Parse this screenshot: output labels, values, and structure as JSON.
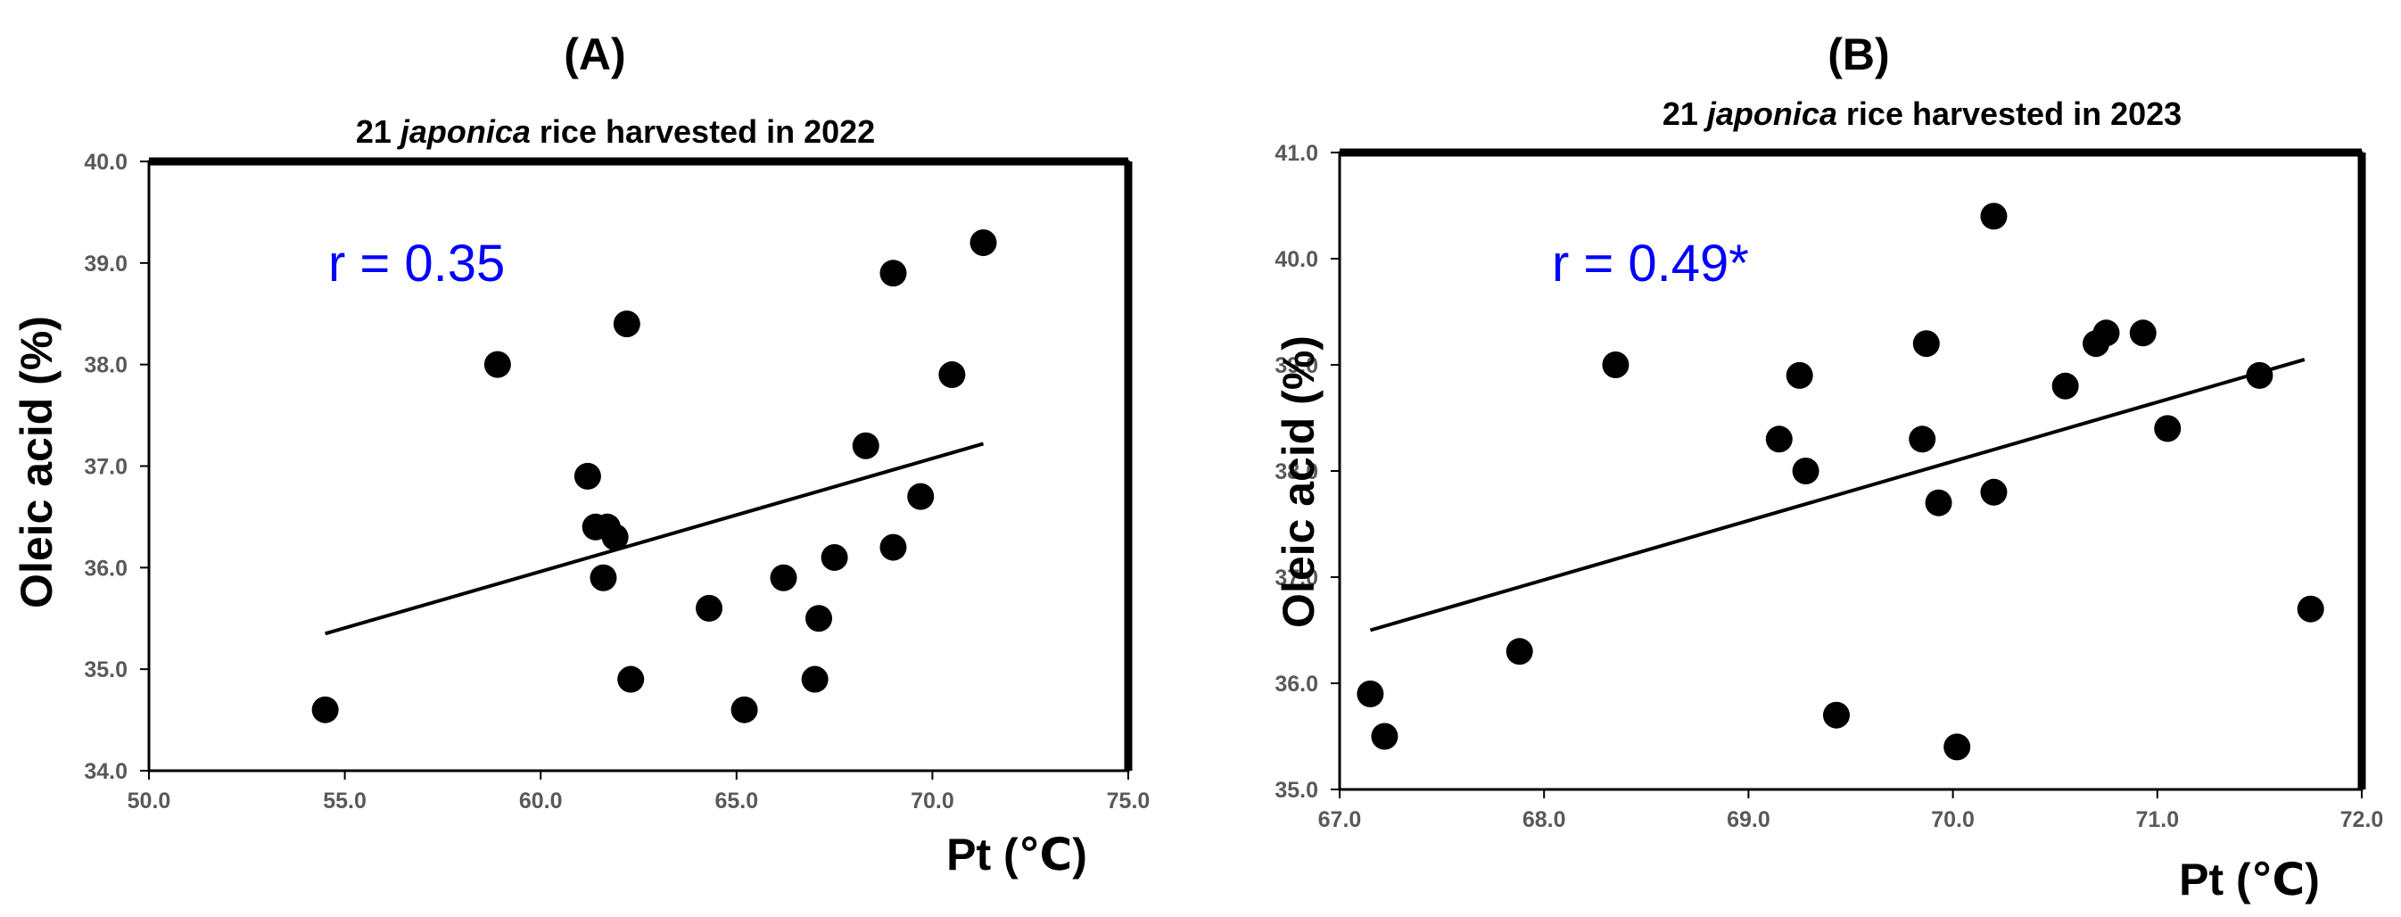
{
  "chart_data": [
    {
      "type": "scatter",
      "panel": "(A)",
      "title_prefix": "21 ",
      "title_italic": "japonica",
      "title_suffix": " rice harvested in 2022",
      "xlabel": "Pt (℃)",
      "ylabel": "Oleic acid (%)",
      "annotation": "r = 0.35",
      "xlim": [
        50.0,
        75.0
      ],
      "ylim": [
        34.0,
        40.0
      ],
      "xticks": [
        "50.0",
        "55.0",
        "60.0",
        "65.0",
        "70.0",
        "75.0"
      ],
      "yticks": [
        "34.0",
        "35.0",
        "36.0",
        "37.0",
        "38.0",
        "39.0",
        "40.0"
      ],
      "grid": false,
      "points": [
        {
          "x": 54.5,
          "y": 34.6
        },
        {
          "x": 58.9,
          "y": 38.0
        },
        {
          "x": 61.2,
          "y": 36.9
        },
        {
          "x": 61.4,
          "y": 36.4
        },
        {
          "x": 61.6,
          "y": 35.9
        },
        {
          "x": 61.7,
          "y": 36.4
        },
        {
          "x": 61.9,
          "y": 36.3
        },
        {
          "x": 62.2,
          "y": 38.4
        },
        {
          "x": 62.3,
          "y": 34.9
        },
        {
          "x": 64.3,
          "y": 35.6
        },
        {
          "x": 65.2,
          "y": 34.6
        },
        {
          "x": 66.2,
          "y": 35.9
        },
        {
          "x": 67.0,
          "y": 34.9
        },
        {
          "x": 67.1,
          "y": 35.5
        },
        {
          "x": 67.5,
          "y": 36.1
        },
        {
          "x": 68.3,
          "y": 37.2
        },
        {
          "x": 69.0,
          "y": 36.2
        },
        {
          "x": 69.0,
          "y": 38.9
        },
        {
          "x": 69.7,
          "y": 36.7
        },
        {
          "x": 70.5,
          "y": 37.9
        },
        {
          "x": 71.3,
          "y": 39.2
        }
      ],
      "trendline": {
        "x": [
          54.5,
          71.3
        ],
        "y": [
          35.35,
          37.22
        ]
      }
    },
    {
      "type": "scatter",
      "panel": "(B)",
      "title_prefix": "21 ",
      "title_italic": "japonica",
      "title_suffix": " rice harvested in 2023",
      "xlabel": "Pt (℃)",
      "ylabel": "Oleic acid (%)",
      "annotation": "r = 0.49*",
      "xlim": [
        67.0,
        72.0
      ],
      "ylim": [
        35.0,
        41.0
      ],
      "xticks": [
        "67.0",
        "68.0",
        "69.0",
        "70.0",
        "71.0",
        "72.0"
      ],
      "yticks": [
        "35.0",
        "36.0",
        "37.0",
        "38.0",
        "39.0",
        "40.0",
        "41.0"
      ],
      "grid": false,
      "points": [
        {
          "x": 67.15,
          "y": 35.9
        },
        {
          "x": 67.22,
          "y": 35.5
        },
        {
          "x": 67.88,
          "y": 36.3
        },
        {
          "x": 68.35,
          "y": 39.0
        },
        {
          "x": 69.15,
          "y": 38.3
        },
        {
          "x": 69.25,
          "y": 38.9
        },
        {
          "x": 69.28,
          "y": 38.0
        },
        {
          "x": 69.43,
          "y": 35.7
        },
        {
          "x": 69.85,
          "y": 38.3
        },
        {
          "x": 69.87,
          "y": 39.2
        },
        {
          "x": 69.93,
          "y": 37.7
        },
        {
          "x": 70.02,
          "y": 35.4
        },
        {
          "x": 70.2,
          "y": 40.4
        },
        {
          "x": 70.2,
          "y": 37.8
        },
        {
          "x": 70.55,
          "y": 38.8
        },
        {
          "x": 70.7,
          "y": 39.2
        },
        {
          "x": 70.75,
          "y": 39.3
        },
        {
          "x": 70.93,
          "y": 39.3
        },
        {
          "x": 71.05,
          "y": 38.4
        },
        {
          "x": 71.5,
          "y": 38.9
        },
        {
          "x": 71.75,
          "y": 36.7
        }
      ],
      "trendline": {
        "x": [
          67.15,
          71.72
        ],
        "y": [
          36.5,
          39.05
        ]
      }
    }
  ],
  "colors": {
    "annotation": "#0000ff",
    "marker": "#000000",
    "axis_text": "#595959",
    "frame": "#000000"
  }
}
